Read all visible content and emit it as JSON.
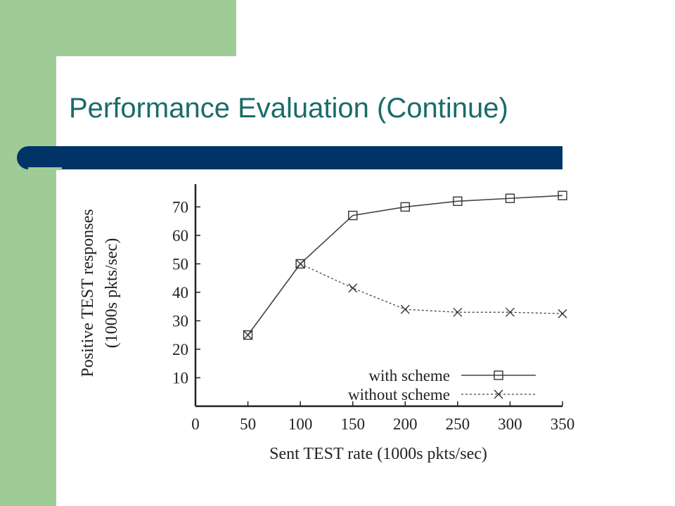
{
  "slide": {
    "title": "Performance Evaluation (Continue)"
  },
  "colors": {
    "accent_green": "#9fcc96",
    "title_color": "#1a6b6b",
    "bar_color": "#003366"
  },
  "chart_data": {
    "type": "line",
    "xlabel": "Sent TEST rate (1000s pkts/sec)",
    "ylabel_line1": "Positive TEST responses",
    "ylabel_line2": "(1000s pkts/sec)",
    "xlim": [
      0,
      350
    ],
    "ylim": [
      0,
      78
    ],
    "x_ticks": [
      0,
      50,
      100,
      150,
      200,
      250,
      300,
      350
    ],
    "y_ticks": [
      10,
      20,
      30,
      40,
      50,
      60,
      70
    ],
    "legend_position": "bottom-right",
    "grid": false,
    "series": [
      {
        "name": "with scheme",
        "marker": "square",
        "line": "solid",
        "x": [
          50,
          100,
          150,
          200,
          250,
          300,
          350
        ],
        "y": [
          25,
          50,
          67,
          70,
          72,
          73,
          74
        ]
      },
      {
        "name": "without scheme",
        "marker": "x",
        "line": "dotted",
        "x": [
          50,
          100,
          150,
          200,
          250,
          300,
          350
        ],
        "y": [
          25,
          50,
          41.5,
          34,
          33,
          33,
          32.5
        ]
      }
    ]
  }
}
